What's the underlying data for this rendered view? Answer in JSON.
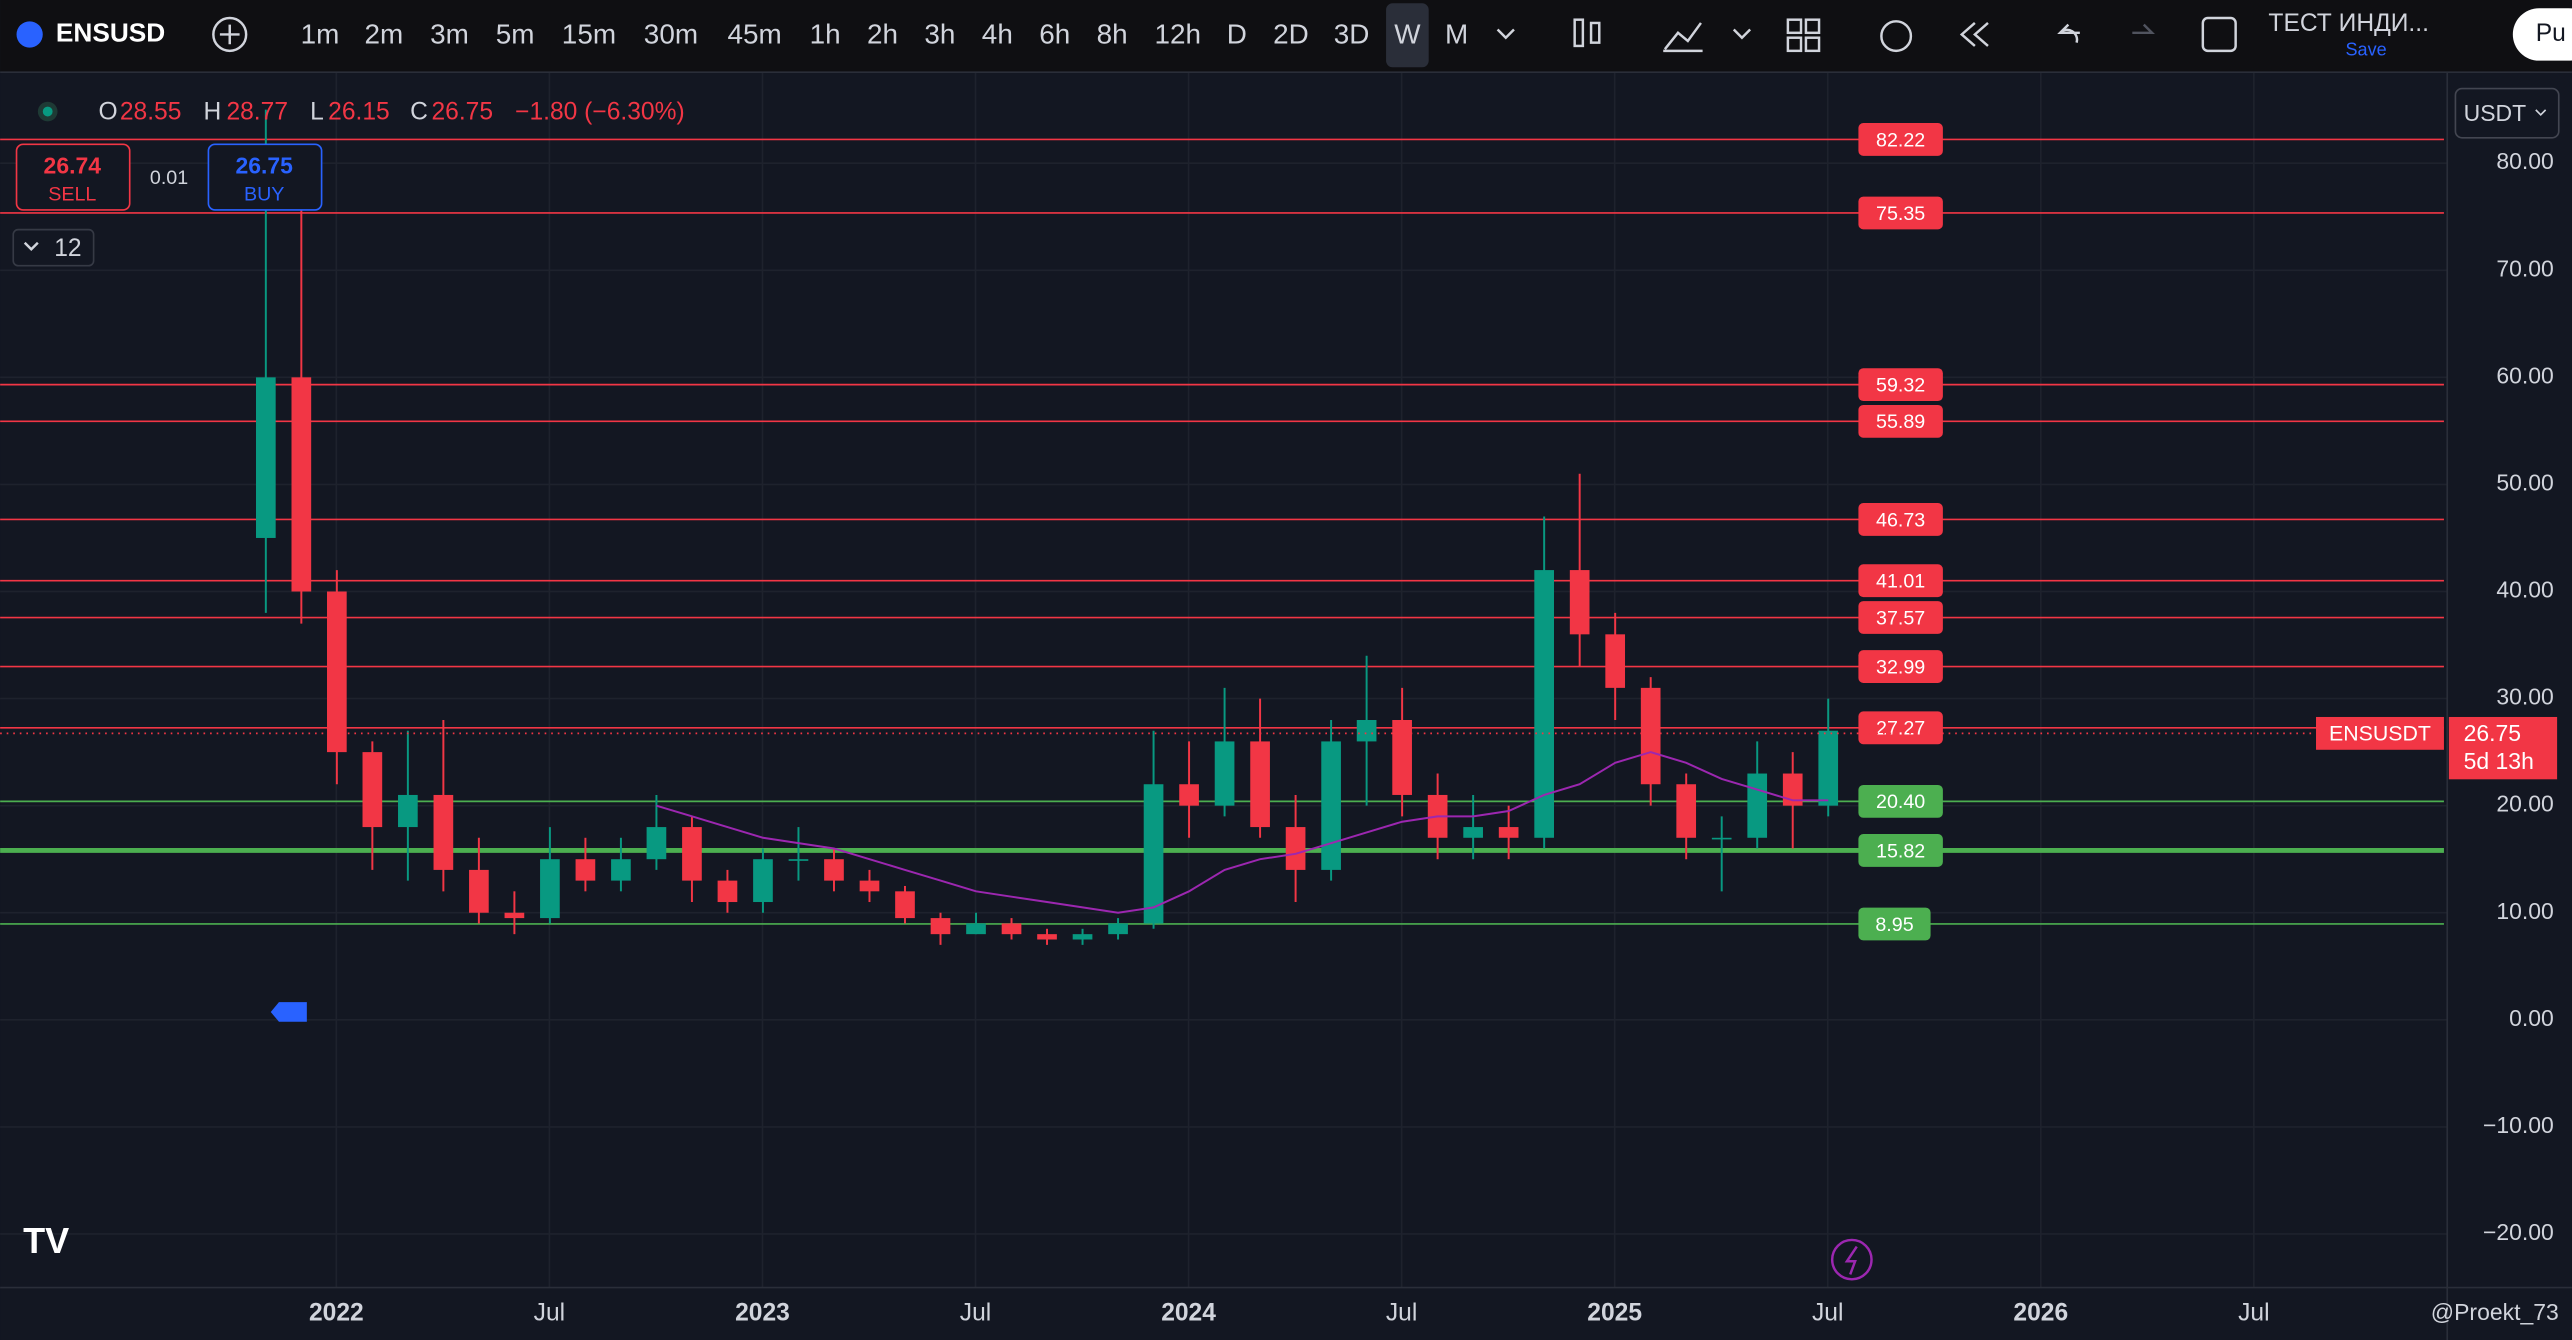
{
  "toolbar": {
    "symbol": "ENSUSD",
    "intervals": [
      "1m",
      "2m",
      "3m",
      "5m",
      "15m",
      "30m",
      "45m",
      "1h",
      "2h",
      "3h",
      "4h",
      "6h",
      "8h",
      "12h",
      "D",
      "2D",
      "3D",
      "W",
      "M"
    ],
    "active_interval": 17,
    "layout_name": "ТЕСТ ИНДИ...",
    "save": "Save",
    "account": "Pu"
  },
  "legend": {
    "o": "O",
    "open": "28.55",
    "h": "H",
    "high": "28.77",
    "l": "L",
    "low": "26.15",
    "c": "C",
    "close": "26.75",
    "change": "−1.80 (−6.30%)"
  },
  "trade": {
    "sell_price": "26.74",
    "sell": "SELL",
    "spread": "0.01",
    "buy_price": "26.75",
    "buy": "BUY",
    "lots": "12"
  },
  "currency": "USDT",
  "watermark": "@Proekt_73",
  "chart_data": {
    "type": "candlestick",
    "up_color": "#089981",
    "down_color": "#f23645",
    "ma_color": "#9c27b0",
    "ylim": [
      -25,
      88.5
    ],
    "yticks": [
      {
        "value": 80,
        "label": "80.00"
      },
      {
        "value": 70,
        "label": "70.00"
      },
      {
        "value": 60,
        "label": "60.00"
      },
      {
        "value": 50,
        "label": "50.00"
      },
      {
        "value": 40,
        "label": "40.00"
      },
      {
        "value": 30,
        "label": "30.00"
      },
      {
        "value": 20,
        "label": "20.00"
      },
      {
        "value": 10,
        "label": "10.00"
      },
      {
        "value": 0,
        "label": "0.00"
      },
      {
        "value": -10,
        "label": "−10.00"
      },
      {
        "value": -20,
        "label": "−20.00"
      }
    ],
    "xticks": [
      "2022",
      "Jul",
      "2023",
      "Jul",
      "2024",
      "Jul",
      "2025",
      "Jul",
      "2026",
      "Jul"
    ],
    "candles": [
      [
        45,
        85,
        38,
        60
      ],
      [
        60,
        78,
        37,
        40
      ],
      [
        40,
        42,
        22,
        25
      ],
      [
        25,
        26,
        14,
        18
      ],
      [
        18,
        27,
        13,
        21
      ],
      [
        21,
        28,
        12,
        14
      ],
      [
        14,
        17,
        9,
        10
      ],
      [
        10,
        12,
        8,
        9.5
      ],
      [
        9.5,
        18,
        9,
        15
      ],
      [
        15,
        17,
        12,
        13
      ],
      [
        13,
        17,
        12,
        15
      ],
      [
        15,
        21,
        14,
        18
      ],
      [
        18,
        19,
        11,
        13
      ],
      [
        13,
        14,
        10,
        11
      ],
      [
        11,
        16,
        10,
        15
      ],
      [
        15,
        18,
        13,
        15
      ],
      [
        15,
        16,
        12,
        13
      ],
      [
        13,
        14,
        11,
        12
      ],
      [
        12,
        12.5,
        9,
        9.5
      ],
      [
        9.5,
        10,
        7,
        8
      ],
      [
        8,
        10,
        8,
        9
      ],
      [
        9,
        9.5,
        7.5,
        8
      ],
      [
        8,
        8.5,
        7,
        7.5
      ],
      [
        7.5,
        8.5,
        7,
        8
      ],
      [
        8,
        9.5,
        7.5,
        9
      ],
      [
        9,
        27,
        8.5,
        22
      ],
      [
        22,
        26,
        17,
        20
      ],
      [
        20,
        31,
        19,
        26
      ],
      [
        26,
        30,
        17,
        18
      ],
      [
        18,
        21,
        11,
        14
      ],
      [
        14,
        28,
        13,
        26
      ],
      [
        26,
        34,
        20,
        28
      ],
      [
        28,
        31,
        19,
        21
      ],
      [
        21,
        23,
        15,
        17
      ],
      [
        17,
        21,
        15,
        18
      ],
      [
        18,
        20,
        15,
        17
      ],
      [
        17,
        47,
        16,
        42
      ],
      [
        42,
        51,
        33,
        36
      ],
      [
        36,
        38,
        28,
        31
      ],
      [
        31,
        32,
        20,
        22
      ],
      [
        22,
        23,
        15,
        17
      ],
      [
        17,
        19,
        12,
        17
      ],
      [
        17,
        26,
        16,
        23
      ],
      [
        23,
        25,
        16,
        20
      ],
      [
        20,
        30,
        19,
        27
      ]
    ],
    "ma": [
      null,
      null,
      null,
      null,
      null,
      null,
      null,
      null,
      null,
      null,
      null,
      20,
      19,
      18,
      17,
      16.5,
      16,
      15,
      14,
      13,
      12,
      11.5,
      11,
      10.5,
      10,
      10.5,
      12,
      14,
      15,
      15.5,
      16.5,
      17.5,
      18.5,
      19,
      19,
      19.5,
      21,
      22,
      24,
      25,
      24,
      22.5,
      21.5,
      20.5,
      20.5
    ],
    "levels": {
      "values": [
        82.22,
        75.35,
        59.32,
        55.89,
        46.73,
        41.01,
        37.57,
        32.99,
        27.27,
        20.4,
        15.82,
        8.95
      ],
      "value_labels": [
        "82.22",
        "75.35",
        "59.32",
        "55.89",
        "46.73",
        "41.01",
        "37.57",
        "32.99",
        "27.27",
        "20.40",
        "15.82",
        "8.95"
      ],
      "colors": [
        "#f23645",
        "#f23645",
        "#f23645",
        "#f23645",
        "#f23645",
        "#f23645",
        "#f23645",
        "#f23645",
        "#f23645",
        "#4caf50",
        "#4caf50",
        "#4caf50"
      ],
      "line_widths": [
        1,
        1,
        1,
        1,
        1,
        1,
        1,
        1,
        1,
        1,
        3,
        1
      ]
    },
    "last_price": {
      "symbol": "ENSUSDT",
      "value": 26.75,
      "label": "26.75",
      "countdown": "5d 13h"
    }
  }
}
